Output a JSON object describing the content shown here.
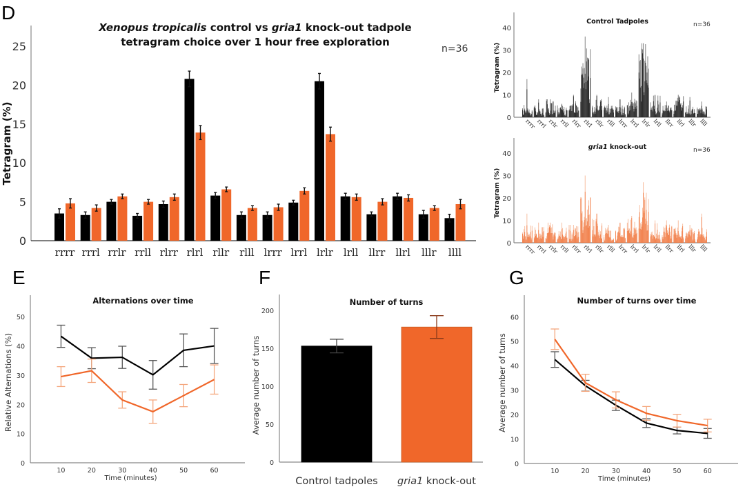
{
  "colors": {
    "control": "#000000",
    "knockout": "#f0672a",
    "control_light": "#555555",
    "knockout_light": "#f4a67c"
  },
  "chart_data": [
    {
      "id": "D",
      "panel_label": "D",
      "type": "bar",
      "title_italic": "Xenopus tropicalis",
      "title_rest_line1": " control vs ",
      "title_italic2": "gria1",
      "title_rest_line1b": " knock-out tadpole",
      "title_line2": "tetragram choice over 1 hour free exploration",
      "annotation": "n=36",
      "ylabel": "Tetragram (%)",
      "xlabel": "",
      "ylim": [
        0,
        27
      ],
      "yticks": [
        0,
        5,
        10,
        15,
        20,
        25
      ],
      "categories": [
        "rrrr",
        "rrrl",
        "rrlr",
        "rrll",
        "rlrr",
        "rlrl",
        "rllr",
        "rlll",
        "lrrr",
        "lrrl",
        "lrlr",
        "lrll",
        "llrr",
        "llrl",
        "lllr",
        "llll"
      ],
      "series": [
        {
          "name": "Control tadpoles",
          "values": [
            3.5,
            3.3,
            5.0,
            3.2,
            4.7,
            20.8,
            5.8,
            3.3,
            3.3,
            4.9,
            20.5,
            5.7,
            3.4,
            5.7,
            3.4,
            2.9
          ],
          "errors": [
            0.6,
            0.4,
            0.3,
            0.3,
            0.4,
            1.0,
            0.4,
            0.4,
            0.4,
            0.3,
            1.0,
            0.4,
            0.3,
            0.4,
            0.5,
            0.5
          ]
        },
        {
          "name": "gria1 knock-out",
          "values": [
            4.8,
            4.2,
            5.7,
            5.0,
            5.6,
            13.9,
            6.6,
            4.2,
            4.3,
            6.4,
            13.7,
            5.6,
            5.0,
            5.5,
            4.2,
            4.7
          ],
          "errors": [
            0.6,
            0.4,
            0.3,
            0.3,
            0.4,
            0.9,
            0.3,
            0.3,
            0.4,
            0.4,
            0.9,
            0.4,
            0.4,
            0.4,
            0.3,
            0.6
          ]
        }
      ],
      "grid": false,
      "legend": "none"
    },
    {
      "id": "D-control",
      "type": "bar",
      "title": "Control Tadpoles",
      "annotation": "n=36",
      "ylabel": "Tetragram (%)",
      "ylim": [
        0,
        43
      ],
      "yticks": [
        0,
        10,
        20,
        30,
        40
      ],
      "categories": [
        "rrrr",
        "rrrl",
        "rrlr",
        "rrll",
        "rlrr",
        "rlrl",
        "rllr",
        "rlll",
        "lrrr",
        "lrrl",
        "lrlr",
        "lrll",
        "llrr",
        "llrl",
        "lllr",
        "llll"
      ],
      "group_peaks": [
        17,
        8,
        8,
        6,
        10,
        36,
        10,
        9,
        8,
        11,
        33,
        10,
        7,
        10,
        9,
        7
      ],
      "group_means": [
        3.5,
        3.3,
        5.0,
        3.2,
        4.7,
        20.8,
        5.8,
        3.3,
        3.3,
        4.9,
        20.5,
        5.7,
        3.4,
        5.7,
        3.4,
        2.9
      ],
      "individuals_per_category": 36,
      "series_color": "control"
    },
    {
      "id": "D-knockout",
      "type": "bar",
      "title_italic": "gria1",
      "title_rest": " knock-out",
      "annotation": "n=36",
      "ylabel": "Tetragram (%)",
      "ylim": [
        0,
        43
      ],
      "yticks": [
        0,
        10,
        20,
        30,
        40
      ],
      "categories": [
        "rrrr",
        "rrrl",
        "rrlr",
        "rrll",
        "rlrr",
        "rlrl",
        "rllr",
        "rlll",
        "lrrr",
        "lrrl",
        "lrlr",
        "lrll",
        "llrr",
        "llrl",
        "lllr",
        "llll"
      ],
      "group_peaks": [
        13,
        9,
        9,
        9,
        8,
        30,
        13,
        8,
        9,
        12,
        27,
        10,
        10,
        10,
        8,
        13
      ],
      "group_means": [
        4.8,
        4.2,
        5.7,
        5.0,
        5.6,
        13.9,
        6.6,
        4.2,
        4.3,
        6.4,
        13.7,
        5.6,
        5.0,
        5.5,
        4.2,
        4.7
      ],
      "individuals_per_category": 36,
      "series_color": "knockout"
    },
    {
      "id": "E",
      "panel_label": "E",
      "type": "line",
      "title": "Alternations over time",
      "xlabel": "Time (minutes)",
      "ylabel": "Relative Alternations (%)",
      "x": [
        10,
        20,
        30,
        40,
        50,
        60
      ],
      "xlim": [
        0,
        70
      ],
      "ylim": [
        0,
        55
      ],
      "yticks": [
        0,
        10,
        20,
        30,
        40,
        50
      ],
      "series": [
        {
          "name": "Control tadpoles",
          "values": [
            43.3,
            35.8,
            36.1,
            30.1,
            38.5,
            40.0
          ],
          "errors": [
            3.8,
            3.6,
            3.8,
            4.9,
            5.6,
            6.0
          ]
        },
        {
          "name": "gria1 knock-out",
          "values": [
            29.5,
            31.5,
            21.5,
            17.5,
            23.0,
            28.5
          ],
          "errors": [
            3.4,
            4.0,
            2.8,
            4.0,
            3.8,
            5.0
          ]
        }
      ],
      "grid": false,
      "legend": "none"
    },
    {
      "id": "F",
      "panel_label": "F",
      "type": "bar",
      "title": "Number of turns",
      "ylabel": "Average number of turns",
      "categories": [
        "Control tadpoles",
        "gria1 knock-out"
      ],
      "category_italic_prefix": [
        "",
        "gria1"
      ],
      "category_suffix": [
        "",
        " knock-out"
      ],
      "values": [
        153,
        178
      ],
      "errors": [
        9,
        15
      ],
      "ylim": [
        0,
        220
      ],
      "yticks": [
        0,
        50,
        100,
        150,
        200
      ],
      "grid": false,
      "legend": "none"
    },
    {
      "id": "G",
      "panel_label": "G",
      "type": "line",
      "title": "Number of turns over time",
      "xlabel": "Time (minutes)",
      "ylabel": "Average number of turns",
      "x": [
        10,
        20,
        30,
        40,
        50,
        60
      ],
      "xlim": [
        0,
        70
      ],
      "ylim": [
        0,
        66
      ],
      "yticks": [
        0,
        10,
        20,
        30,
        40,
        50,
        60
      ],
      "series": [
        {
          "name": "Control tadpoles",
          "values": [
            42.5,
            31.8,
            23.8,
            16.5,
            13.5,
            12.3
          ],
          "errors": [
            3.2,
            2.2,
            2.1,
            1.8,
            1.4,
            2.0
          ]
        },
        {
          "name": "gria1 knock-out",
          "values": [
            50.8,
            33.0,
            26.0,
            20.5,
            17.5,
            15.5
          ],
          "errors": [
            4.2,
            3.5,
            3.3,
            2.8,
            2.6,
            2.6
          ]
        }
      ],
      "grid": false,
      "legend": "none"
    }
  ]
}
